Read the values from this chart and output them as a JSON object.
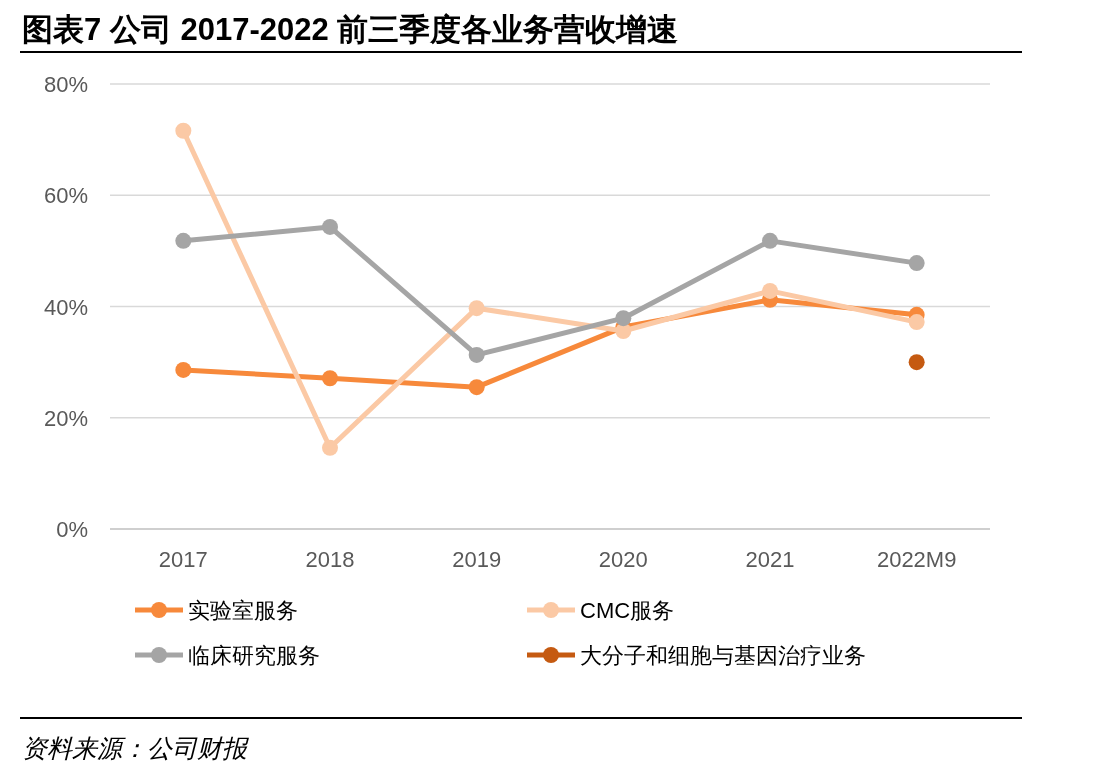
{
  "chart_data": {
    "type": "line",
    "title": "图表7   公司 2017-2022 前三季度各业务营收增速",
    "categories": [
      "2017",
      "2018",
      "2019",
      "2020",
      "2021",
      "2022M9"
    ],
    "series": [
      {
        "name": "实验室服务",
        "color": "#f7893b",
        "values": [
          28.6,
          27.1,
          25.5,
          36.3,
          41.2,
          38.5
        ]
      },
      {
        "name": "CMC服务",
        "color": "#fbc9a5",
        "values": [
          71.6,
          14.6,
          39.7,
          35.6,
          42.8,
          37.2
        ]
      },
      {
        "name": "临床研究服务",
        "color": "#a5a5a5",
        "values": [
          51.8,
          54.3,
          31.3,
          37.9,
          51.8,
          47.8
        ]
      },
      {
        "name": "大分子和细胞与基因治疗业务",
        "color": "#c55a11",
        "values": [
          null,
          null,
          null,
          null,
          null,
          30.0
        ]
      }
    ],
    "ylim": [
      0,
      80
    ],
    "yticks": [
      {
        "value": 0,
        "label": "0%"
      },
      {
        "value": 20,
        "label": "20%"
      },
      {
        "value": 40,
        "label": "40%"
      },
      {
        "value": 60,
        "label": "60%"
      },
      {
        "value": 80,
        "label": "80%"
      }
    ],
    "grid": "y",
    "legend": "bottom",
    "marker": "circle",
    "annotations": [
      "资料来源：公司财报"
    ]
  }
}
